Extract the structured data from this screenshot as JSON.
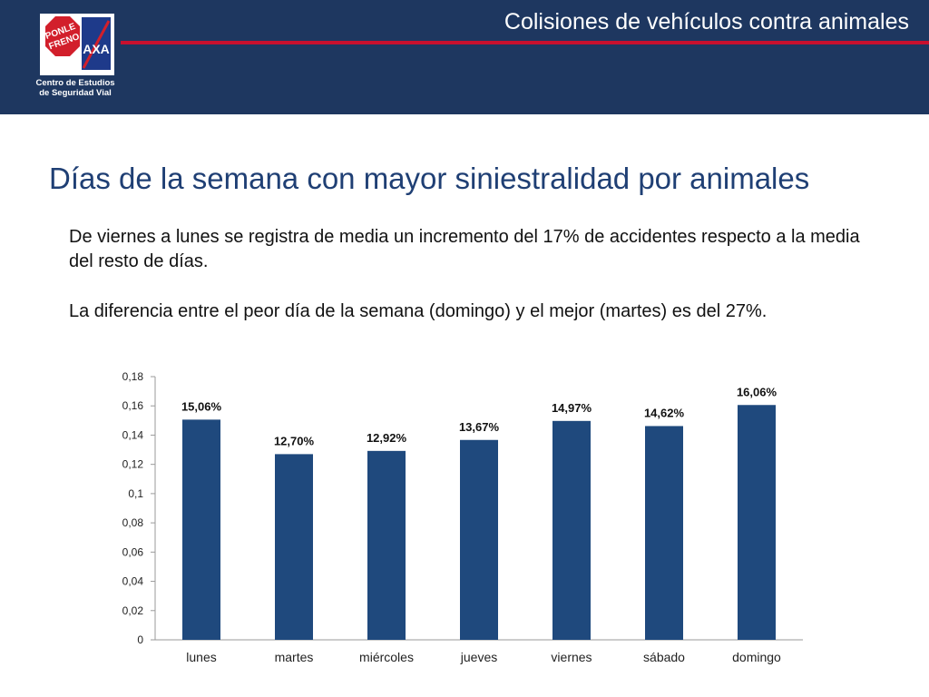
{
  "header": {
    "title": "Colisiones de vehículos contra animales",
    "logo": {
      "badge_text": "PONLE FRENO",
      "brand": "AXA",
      "caption_line1": "Centro de Estudios",
      "caption_line2": "de Seguridad Vial"
    },
    "colors": {
      "band": "#1e3760",
      "accent_line": "#c8102e"
    }
  },
  "slide": {
    "title": "Días de la semana con mayor siniestralidad por animales",
    "paragraph1": "De viernes a lunes se registra de media un incremento del 17% de accidentes respecto a la media del resto de días.",
    "paragraph2": "La diferencia entre el peor día de la semana (domingo) y el mejor (martes) es del 27%."
  },
  "chart_data": {
    "type": "bar",
    "categories": [
      "lunes",
      "martes",
      "miércoles",
      "jueves",
      "viernes",
      "sábado",
      "domingo"
    ],
    "values": [
      0.1506,
      0.127,
      0.1292,
      0.1367,
      0.1497,
      0.1462,
      0.1606
    ],
    "data_labels": [
      "15,06%",
      "12,70%",
      "12,92%",
      "13,67%",
      "14,97%",
      "14,62%",
      "16,06%"
    ],
    "ylim": [
      0,
      0.18
    ],
    "yticks": [
      0,
      0.02,
      0.04,
      0.06,
      0.08,
      0.1,
      0.12,
      0.14,
      0.16,
      0.18
    ],
    "ytick_labels": [
      "0",
      "0,02",
      "0,04",
      "0,06",
      "0,08",
      "0,1",
      "0,12",
      "0,14",
      "0,16",
      "0,18"
    ],
    "bar_color": "#1f497d",
    "grid": false,
    "legend": "none"
  }
}
